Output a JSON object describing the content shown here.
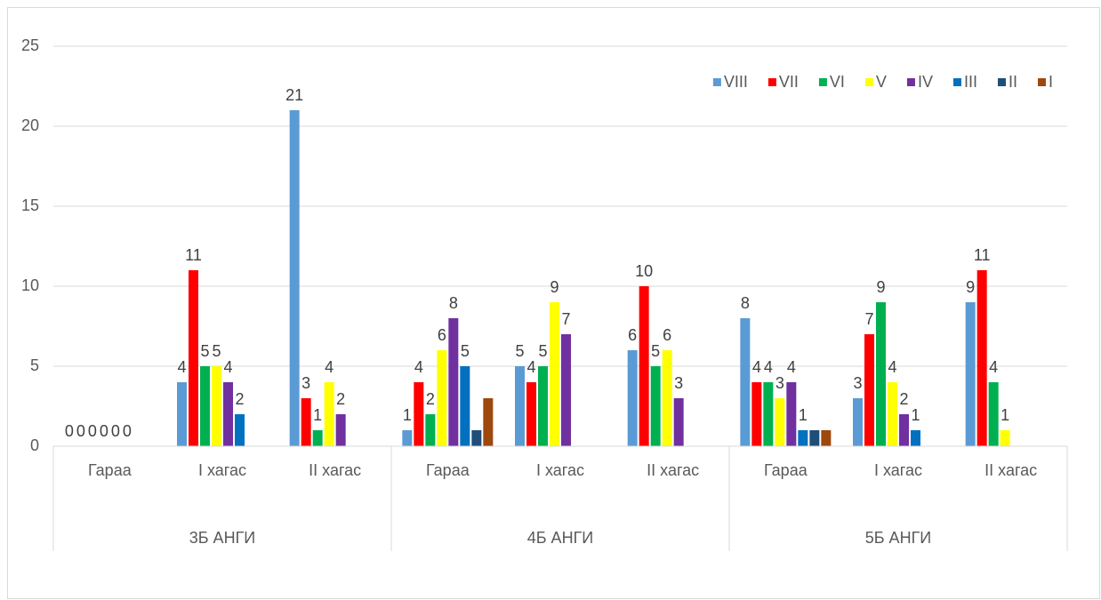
{
  "chart_data": {
    "type": "bar",
    "groups": [
      {
        "name": "3Б АНГИ",
        "categories": [
          "Гараа",
          "I хагас",
          "II хагас"
        ]
      },
      {
        "name": "4Б АНГИ",
        "categories": [
          "Гараа",
          "I хагас",
          "II хагас"
        ]
      },
      {
        "name": "5Б АНГИ",
        "categories": [
          "Гараа",
          "I хагас",
          "II хагас"
        ]
      }
    ],
    "series": [
      {
        "name": "VIII",
        "color": "#5b9bd5",
        "data_labels": true,
        "values": [
          0,
          4,
          21,
          1,
          5,
          6,
          8,
          3,
          9
        ]
      },
      {
        "name": "VII",
        "color": "#ff0000",
        "data_labels": true,
        "values": [
          0,
          11,
          3,
          4,
          4,
          10,
          4,
          7,
          11
        ]
      },
      {
        "name": "VI",
        "color": "#00b050",
        "data_labels": true,
        "values": [
          0,
          5,
          1,
          2,
          5,
          5,
          4,
          9,
          4
        ]
      },
      {
        "name": "V",
        "color": "#ffff00",
        "data_labels": true,
        "values": [
          0,
          5,
          4,
          6,
          9,
          6,
          3,
          4,
          1
        ]
      },
      {
        "name": "IV",
        "color": "#7030a0",
        "data_labels": true,
        "values": [
          0,
          4,
          2,
          8,
          7,
          3,
          4,
          2,
          null
        ]
      },
      {
        "name": "III",
        "color": "#0070c0",
        "data_labels": true,
        "values": [
          0,
          2,
          null,
          5,
          null,
          null,
          1,
          1,
          null
        ]
      },
      {
        "name": "II",
        "color": "#1f4e79",
        "data_labels": false,
        "values": [
          null,
          null,
          null,
          1,
          null,
          null,
          1,
          null,
          null
        ]
      },
      {
        "name": "I",
        "color": "#9e480e",
        "data_labels": false,
        "values": [
          null,
          null,
          null,
          3,
          null,
          null,
          1,
          null,
          null
        ]
      }
    ],
    "ylim": [
      0,
      25
    ],
    "yticks": [
      0,
      5,
      10,
      15,
      20,
      25
    ],
    "grid": true,
    "legend": "top-right"
  }
}
